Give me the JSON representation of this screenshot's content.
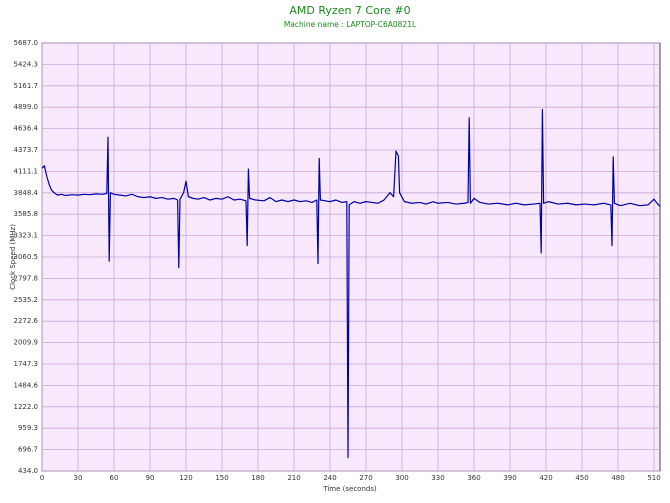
{
  "chart_data": {
    "type": "line",
    "title": "AMD Ryzen 7 Core #0",
    "subtitle": "Machine name : LAPTOP-C6A0821L",
    "x_label": "Time (seconds)",
    "y_label": "Clock Speed (MHz)",
    "xlim": [
      0,
      515
    ],
    "xticks": [
      0,
      30,
      60,
      90,
      120,
      150,
      180,
      210,
      240,
      270,
      300,
      330,
      360,
      390,
      420,
      450,
      480,
      510
    ],
    "ylim": [
      434,
      5687
    ],
    "yticks": [
      {
        "value": 434,
        "label": "434.0"
      },
      696.7,
      959.3,
      {
        "value": 1222,
        "label": "1222.0"
      },
      1484.6,
      1747.3,
      2009.9,
      2272.6,
      2535.2,
      2797.8,
      3060.5,
      3323.1,
      3585.8,
      3848.4,
      4111.1,
      4373.7,
      4636.4,
      {
        "value": 4899,
        "label": "4899.0"
      },
      5161.7,
      5424.3,
      {
        "value": 5687,
        "label": "5687.0"
      }
    ],
    "grid": true,
    "color": "#0000a8",
    "x": [
      0,
      2,
      4,
      6,
      8,
      10,
      13,
      16,
      20,
      25,
      30,
      35,
      40,
      45,
      50,
      54,
      55,
      56,
      57,
      60,
      65,
      70,
      75,
      80,
      85,
      90,
      95,
      100,
      105,
      110,
      113,
      114,
      115,
      118,
      120,
      122,
      126,
      130,
      135,
      140,
      145,
      150,
      155,
      160,
      165,
      170,
      171,
      172,
      173,
      178,
      185,
      190,
      195,
      200,
      205,
      210,
      215,
      220,
      225,
      229,
      230,
      231,
      232,
      236,
      240,
      245,
      250,
      254,
      255,
      256,
      260,
      265,
      270,
      275,
      280,
      285,
      290,
      293,
      295,
      297,
      298,
      302,
      308,
      315,
      320,
      326,
      330,
      338,
      345,
      352,
      355,
      356,
      357,
      360,
      365,
      372,
      380,
      388,
      395,
      402,
      410,
      415,
      416,
      417,
      418,
      422,
      430,
      438,
      445,
      452,
      460,
      468,
      474,
      475,
      476,
      477,
      482,
      490,
      498,
      505,
      510,
      512,
      515
    ],
    "values": [
      4150,
      4180,
      4050,
      3950,
      3880,
      3850,
      3820,
      3830,
      3815,
      3825,
      3820,
      3830,
      3825,
      3835,
      3830,
      3840,
      4530,
      3010,
      3850,
      3830,
      3820,
      3810,
      3830,
      3800,
      3790,
      3800,
      3780,
      3790,
      3770,
      3780,
      3760,
      2930,
      3770,
      3850,
      3990,
      3800,
      3780,
      3770,
      3790,
      3760,
      3780,
      3770,
      3800,
      3760,
      3770,
      3750,
      3200,
      4140,
      3780,
      3760,
      3750,
      3790,
      3740,
      3760,
      3740,
      3760,
      3740,
      3750,
      3730,
      3760,
      2980,
      4270,
      3760,
      3750,
      3740,
      3760,
      3730,
      3740,
      600,
      3700,
      3740,
      3720,
      3740,
      3730,
      3720,
      3760,
      3850,
      3800,
      4360,
      4300,
      3850,
      3740,
      3720,
      3730,
      3710,
      3740,
      3720,
      3730,
      3710,
      3720,
      3730,
      4770,
      3720,
      3780,
      3730,
      3710,
      3720,
      3700,
      3720,
      3700,
      3710,
      3720,
      3110,
      4870,
      3720,
      3740,
      3710,
      3720,
      3700,
      3710,
      3700,
      3720,
      3700,
      3200,
      4290,
      3720,
      3690,
      3720,
      3690,
      3700,
      3770,
      3730,
      3680
    ]
  }
}
